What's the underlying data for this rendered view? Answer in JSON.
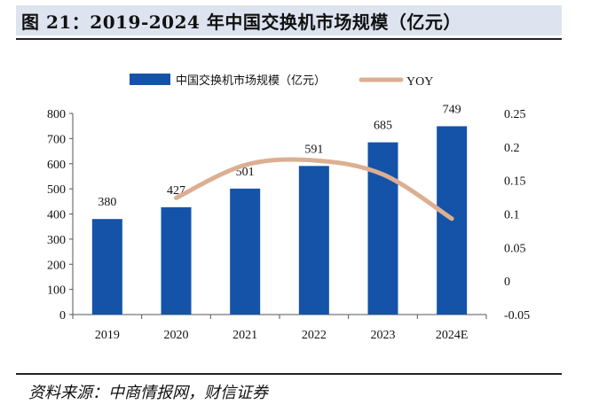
{
  "header": {
    "title": "图 21：2019-2024 年中国交换机市场规模（亿元）"
  },
  "footer": {
    "source": "资料来源：中商情报网，财信证券"
  },
  "colors": {
    "bar": "#1553a8",
    "line": "#dcaf92",
    "title_band": "#dde3ef"
  },
  "chart_data": {
    "type": "bar",
    "categories": [
      "2019",
      "2020",
      "2021",
      "2022",
      "2023",
      "2024E"
    ],
    "series": [
      {
        "name": "中国交换机市场规模（亿元）",
        "kind": "bar",
        "axis": "left",
        "values": [
          380,
          427,
          501,
          591,
          685,
          749
        ]
      },
      {
        "name": "YOY",
        "kind": "line",
        "axis": "right",
        "values": [
          null,
          0.124,
          0.173,
          0.18,
          0.159,
          0.093
        ]
      }
    ],
    "y_left": {
      "min": 0,
      "max": 800,
      "ticks": [
        "0",
        "100",
        "200",
        "300",
        "400",
        "500",
        "600",
        "700",
        "800"
      ]
    },
    "y_right": {
      "min": -0.05,
      "max": 0.25,
      "ticks": [
        "-0.05",
        "0",
        "0.05",
        "0.1",
        "0.15",
        "0.2",
        "0.25"
      ]
    },
    "data_labels": [
      "380",
      "427",
      "501",
      "591",
      "685",
      "749"
    ],
    "legend_position": "top-center",
    "grid": false
  }
}
